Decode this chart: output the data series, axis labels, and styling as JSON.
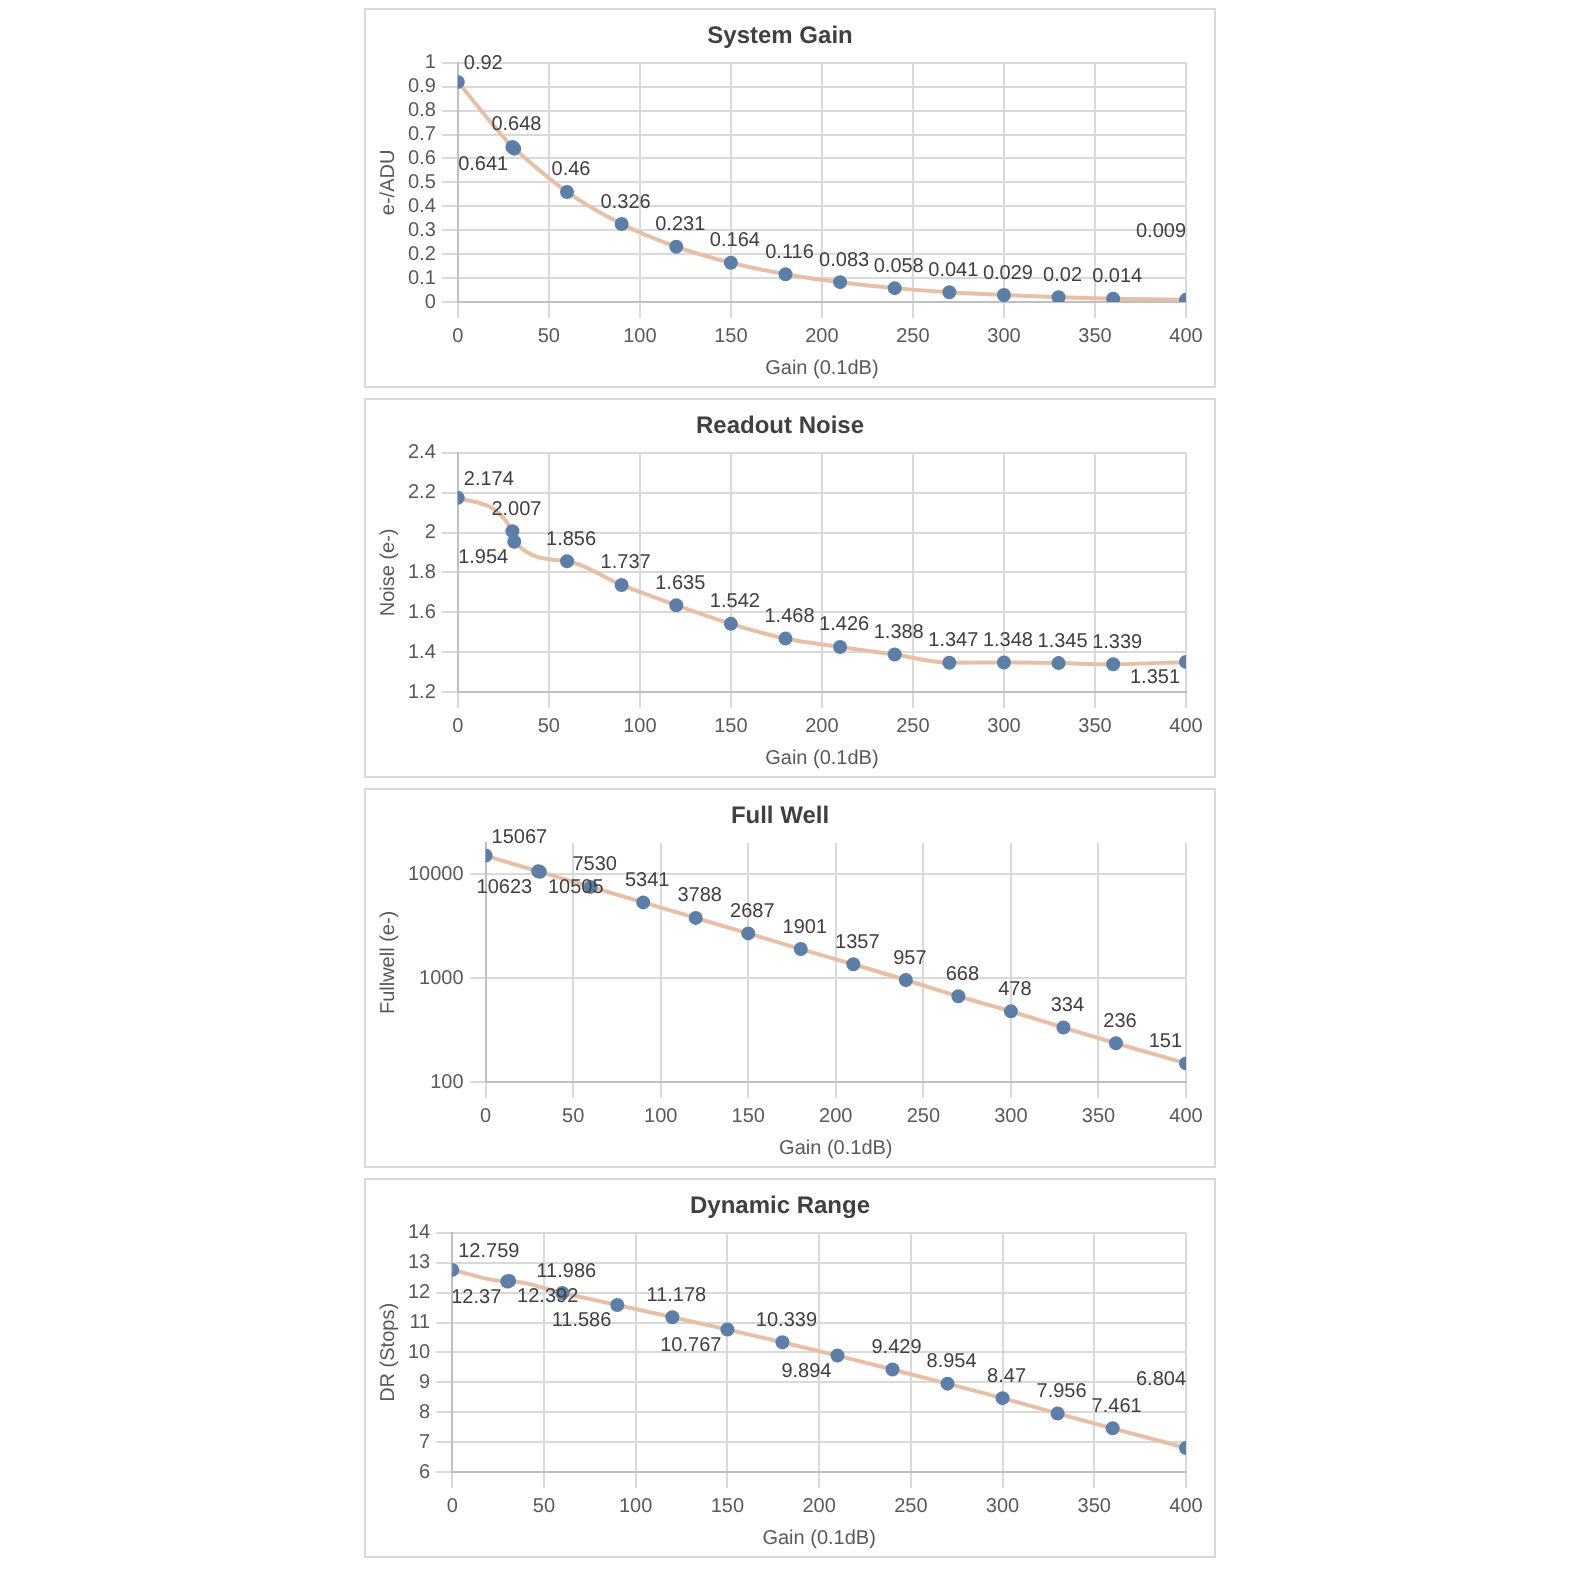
{
  "chart_data": [
    {
      "type": "line",
      "title": "System Gain",
      "xlabel": "Gain (0.1dB)",
      "ylabel": "e-/ADU",
      "x": [
        0,
        30,
        31,
        60,
        90,
        120,
        150,
        180,
        210,
        240,
        270,
        300,
        330,
        360,
        400
      ],
      "series": [
        {
          "color": "#5b7fa8",
          "values": [
            0.92,
            0.648,
            0.641,
            0.46,
            0.326,
            0.231,
            0.164,
            0.116,
            0.083,
            0.058,
            0.041,
            0.029,
            0.02,
            0.014,
            0.009
          ]
        }
      ],
      "xlim": [
        0,
        400
      ],
      "xticks": [
        0,
        50,
        100,
        150,
        200,
        250,
        300,
        350,
        400
      ],
      "ylim": [
        0,
        1
      ],
      "yticks": [
        0,
        0.1,
        0.2,
        0.3,
        0.4,
        0.5,
        0.6,
        0.7,
        0.8,
        0.9,
        1
      ],
      "grid": true,
      "marker": "circle",
      "data_labels": true
    },
    {
      "type": "line",
      "title": "Readout Noise",
      "xlabel": "Gain (0.1dB)",
      "ylabel": "Noise (e-)",
      "x": [
        0,
        30,
        31,
        60,
        90,
        120,
        150,
        180,
        210,
        240,
        270,
        300,
        330,
        360,
        400
      ],
      "series": [
        {
          "color": "#5b7fa8",
          "values": [
            2.174,
            2.007,
            1.954,
            1.856,
            1.737,
            1.635,
            1.542,
            1.468,
            1.426,
            1.388,
            1.347,
            1.348,
            1.345,
            1.339,
            1.351
          ]
        }
      ],
      "xlim": [
        0,
        400
      ],
      "xticks": [
        0,
        50,
        100,
        150,
        200,
        250,
        300,
        350,
        400
      ],
      "ylim": [
        1.2,
        2.4
      ],
      "yticks": [
        1.2,
        1.4,
        1.6,
        1.8,
        2,
        2.2,
        2.4
      ],
      "grid": true,
      "marker": "circle",
      "data_labels": true
    },
    {
      "type": "line",
      "title": "Full Well",
      "xlabel": "Gain (0.1dB)",
      "ylabel": "Fullwell (e-)",
      "x": [
        0,
        30,
        31,
        60,
        90,
        120,
        150,
        180,
        210,
        240,
        270,
        300,
        330,
        360,
        400
      ],
      "series": [
        {
          "color": "#5b7fa8",
          "values": [
            15067,
            10623,
            10505,
            7530,
            5341,
            3788,
            2687,
            1901,
            1357,
            957,
            668,
            478,
            334,
            236,
            151
          ]
        }
      ],
      "xlim": [
        0,
        400
      ],
      "xticks": [
        0,
        50,
        100,
        150,
        200,
        250,
        300,
        350,
        400
      ],
      "ylim": [
        100,
        20000
      ],
      "yticks": [
        100,
        1000,
        10000
      ],
      "log": "y",
      "grid": true,
      "marker": "circle",
      "data_labels": true
    },
    {
      "type": "line",
      "title": "Dynamic Range",
      "xlabel": "Gain (0.1dB)",
      "ylabel": "DR (Stops)",
      "x": [
        0,
        30,
        31,
        60,
        90,
        120,
        150,
        180,
        210,
        240,
        270,
        300,
        330,
        360,
        400
      ],
      "series": [
        {
          "color": "#5b7fa8",
          "values": [
            12.759,
            12.37,
            12.392,
            11.986,
            11.586,
            11.178,
            10.767,
            10.339,
            9.894,
            9.429,
            8.954,
            8.47,
            7.956,
            7.461,
            6.804
          ]
        }
      ],
      "xlim": [
        0,
        400
      ],
      "xticks": [
        0,
        50,
        100,
        150,
        200,
        250,
        300,
        350,
        400
      ],
      "ylim": [
        6,
        14
      ],
      "yticks": [
        6,
        7,
        8,
        9,
        10,
        11,
        12,
        13,
        14
      ],
      "grid": true,
      "marker": "circle",
      "data_labels": true
    }
  ]
}
